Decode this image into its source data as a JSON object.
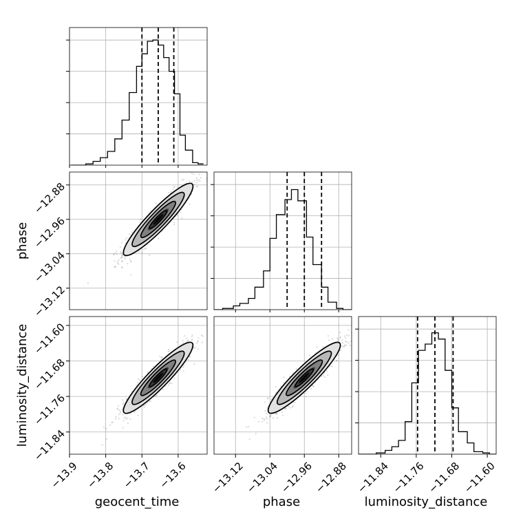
{
  "chart_data": {
    "type": "corner",
    "parameters": [
      {
        "name": "geocent_time",
        "range": [
          -13.9,
          -13.52
        ],
        "ticks": [
          -13.9,
          -13.8,
          -13.7,
          -13.6
        ],
        "tick_labels": [
          "−13.9",
          "−13.8",
          "−13.7",
          "−13.6"
        ],
        "quantiles": [
          -13.7,
          -13.655,
          -13.612
        ],
        "hist": {
          "edges": [
            -13.895,
            -13.875,
            -13.855,
            -13.835,
            -13.815,
            -13.795,
            -13.775,
            -13.755,
            -13.735,
            -13.715,
            -13.7,
            -13.685,
            -13.67,
            -13.655,
            -13.64,
            -13.625,
            -13.61,
            -13.595,
            -13.58,
            -13.56,
            -13.545,
            -13.53
          ],
          "counts": [
            0,
            0,
            0.01,
            0.03,
            0.06,
            0.11,
            0.21,
            0.36,
            0.58,
            0.79,
            0.89,
            0.99,
            1.0,
            0.96,
            0.86,
            0.75,
            0.57,
            0.24,
            0.12,
            0.02,
            0.01
          ]
        }
      },
      {
        "name": "phase",
        "range": [
          -13.17,
          -12.85
        ],
        "ticks": [
          -13.12,
          -13.04,
          -12.96,
          -12.88
        ],
        "tick_labels": [
          "−13.12",
          "−13.04",
          "−12.96",
          "−12.88"
        ],
        "quantiles": [
          -13.0,
          -12.96,
          -12.92
        ],
        "hist": {
          "edges": [
            -13.17,
            -13.15,
            -13.125,
            -13.11,
            -13.09,
            -13.075,
            -13.055,
            -13.04,
            -13.025,
            -13.005,
            -12.99,
            -12.975,
            -12.955,
            -12.94,
            -12.92,
            -12.905,
            -12.885,
            -12.87,
            -12.85
          ],
          "counts": [
            0,
            0.01,
            0.03,
            0.05,
            0.09,
            0.18,
            0.31,
            0.57,
            0.76,
            0.88,
            0.96,
            0.87,
            0.58,
            0.36,
            0.18,
            0.06,
            0.01,
            0
          ]
        }
      },
      {
        "name": "luminosity_distance",
        "range": [
          -11.89,
          -11.58
        ],
        "ticks": [
          -11.84,
          -11.76,
          -11.68,
          -11.6
        ],
        "tick_labels": [
          "−11.84",
          "−11.76",
          "−11.68",
          "−11.60"
        ],
        "quantiles": [
          -11.757,
          -11.718,
          -11.677
        ],
        "hist": {
          "edges": [
            -11.89,
            -11.87,
            -11.85,
            -11.83,
            -11.815,
            -11.8,
            -11.785,
            -11.77,
            -11.755,
            -11.74,
            -11.725,
            -11.71,
            -11.695,
            -11.68,
            -11.665,
            -11.645,
            -11.63,
            -11.61,
            -11.595,
            -11.58
          ],
          "counts": [
            0,
            0,
            0.01,
            0.03,
            0.06,
            0.11,
            0.26,
            0.57,
            0.83,
            0.88,
            0.97,
            0.92,
            0.67,
            0.37,
            0.18,
            0.09,
            0.02,
            0.01,
            0
          ]
        }
      }
    ],
    "hist_ymax": 1.1,
    "correlations": [
      {
        "x": 0,
        "y": 1,
        "mean": [
          -13.655,
          -12.96
        ],
        "sd": [
          0.048,
          0.042
        ],
        "rho": 0.92
      },
      {
        "x": 0,
        "y": 2,
        "mean": [
          -13.655,
          -11.718
        ],
        "sd": [
          0.048,
          0.04
        ],
        "rho": 0.92
      },
      {
        "x": 1,
        "y": 2,
        "mean": [
          -12.96,
          -11.718
        ],
        "sd": [
          0.042,
          0.04
        ],
        "rho": 0.92
      }
    ],
    "contour_levels_sigma": [
      0.5,
      1.0,
      1.5,
      2.0
    ],
    "grid": true,
    "colors": {
      "line": "#000000",
      "grid": "#b0b0b0",
      "samples": "#808080"
    }
  }
}
